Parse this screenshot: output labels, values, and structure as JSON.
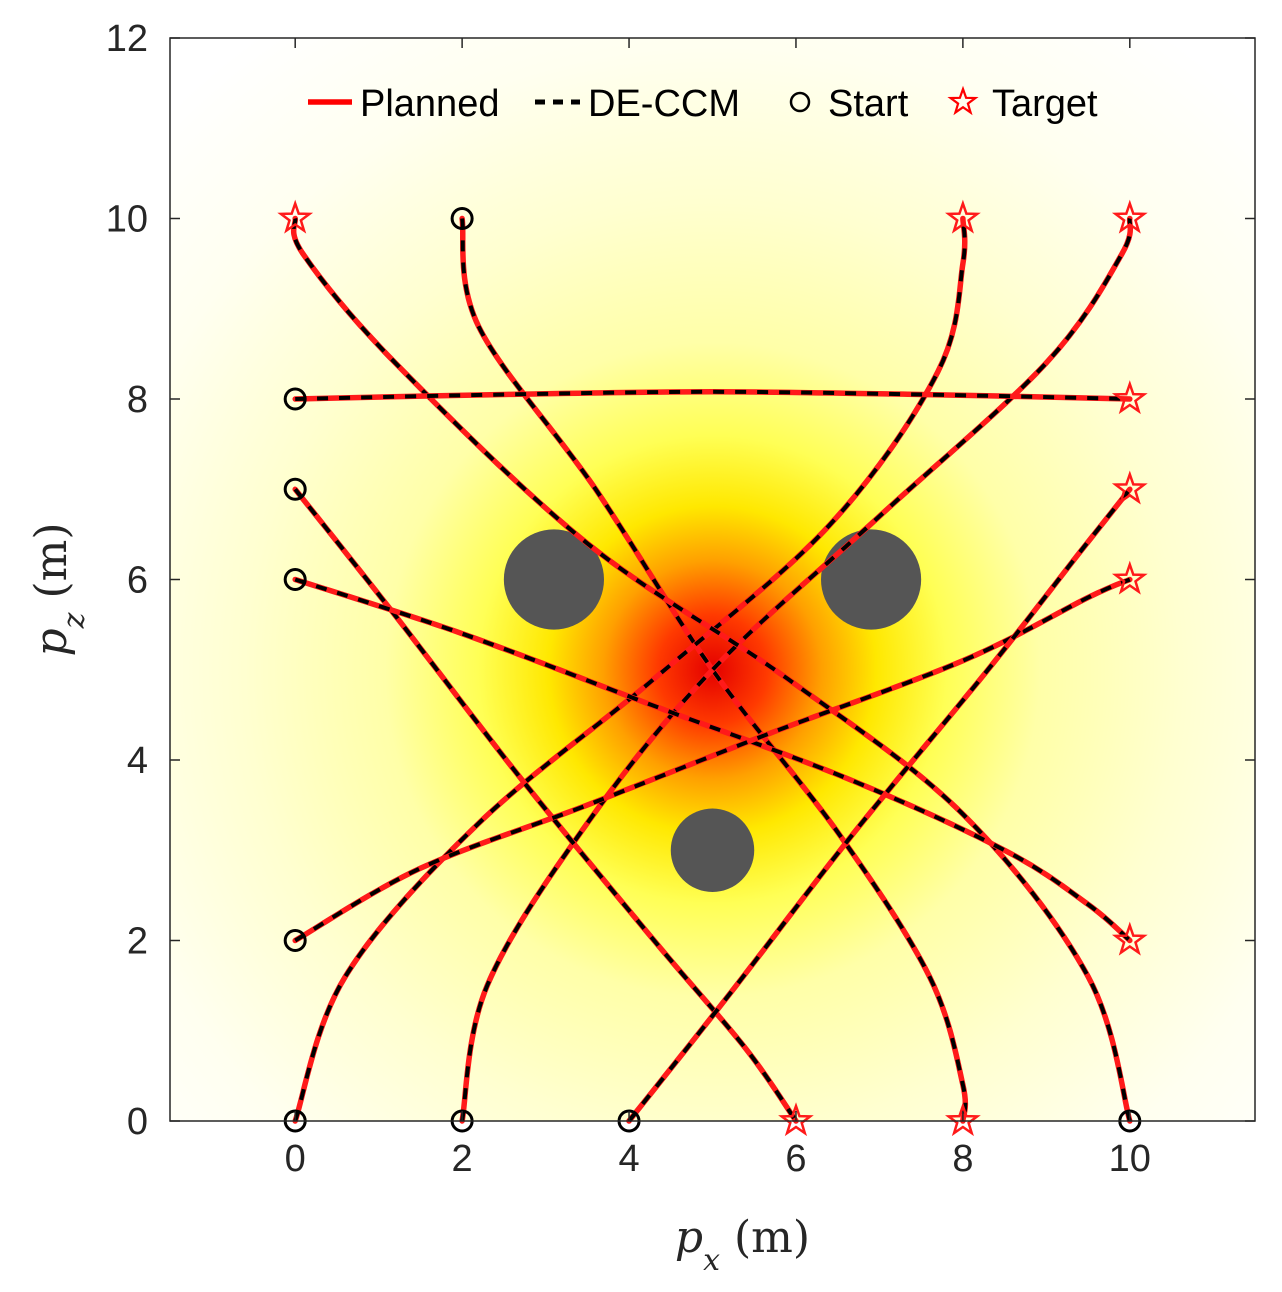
{
  "chart_data": {
    "type": "line",
    "title": "",
    "xlabel": {
      "sym": "p",
      "sub": "x",
      "unit": "(m)"
    },
    "ylabel": {
      "sym": "p",
      "sub": "z",
      "unit": "(m)"
    },
    "xlim": [
      -1.5,
      11.5
    ],
    "ylim": [
      0,
      12
    ],
    "xticks": [
      0,
      2,
      4,
      6,
      8,
      10
    ],
    "yticks": [
      0,
      2,
      4,
      6,
      8,
      10,
      12
    ],
    "grid": false,
    "legend": {
      "position": "top",
      "entries": [
        {
          "label": "Planned",
          "style": "solid",
          "color": "#ff0000"
        },
        {
          "label": "DE-CCM",
          "style": "dashed",
          "color": "#000000"
        },
        {
          "label": "Start",
          "marker": "circle",
          "color": "#000000"
        },
        {
          "label": "Target",
          "marker": "star",
          "color": "#ff0000"
        }
      ]
    },
    "field": {
      "peak": [
        5,
        5
      ],
      "colormap": "hot"
    },
    "obstacles": [
      {
        "x": 3.1,
        "y": 6.0,
        "r": 0.6,
        "color": "#555555"
      },
      {
        "x": 6.9,
        "y": 6.0,
        "r": 0.6,
        "color": "#555555"
      },
      {
        "x": 5.0,
        "y": 3.0,
        "r": 0.5,
        "color": "#555555"
      }
    ],
    "trajectories": [
      {
        "start": [
          2,
          10
        ],
        "target": [
          8,
          0
        ],
        "via": [
          [
            2.2,
            8.8
          ],
          [
            3.6,
            7.0
          ],
          [
            5.0,
            5.0
          ],
          [
            6.5,
            3.2
          ],
          [
            7.6,
            1.6
          ],
          [
            8,
            0.4
          ]
        ]
      },
      {
        "start": [
          0,
          0
        ],
        "target": [
          8,
          10
        ],
        "via": [
          [
            0.6,
            1.6
          ],
          [
            2.2,
            3.3
          ],
          [
            4.3,
            4.9
          ],
          [
            6.4,
            6.6
          ],
          [
            7.7,
            8.3
          ],
          [
            8,
            9.5
          ]
        ]
      },
      {
        "start": [
          2,
          0
        ],
        "target": [
          10,
          10
        ],
        "via": [
          [
            2.3,
            1.5
          ],
          [
            3.5,
            3.3
          ],
          [
            5.0,
            5.0
          ],
          [
            7.0,
            6.7
          ],
          [
            9.0,
            8.4
          ],
          [
            9.9,
            9.6
          ]
        ]
      },
      {
        "start": [
          10,
          0
        ],
        "target": [
          0,
          10
        ],
        "via": [
          [
            9.5,
            1.6
          ],
          [
            8.0,
            3.4
          ],
          [
            5.9,
            4.9
          ],
          [
            3.5,
            6.4
          ],
          [
            1.2,
            8.4
          ],
          [
            0.1,
            9.6
          ]
        ]
      },
      {
        "start": [
          0,
          8
        ],
        "target": [
          10,
          8
        ],
        "via": [
          [
            2.5,
            8.05
          ],
          [
            5.0,
            8.08
          ],
          [
            7.5,
            8.05
          ]
        ]
      },
      {
        "start": [
          0,
          7
        ],
        "target": [
          6,
          0
        ],
        "via": [
          [
            1.2,
            5.6
          ],
          [
            2.7,
            3.8
          ],
          [
            4.3,
            2.0
          ],
          [
            5.4,
            0.8
          ]
        ]
      },
      {
        "start": [
          0,
          6
        ],
        "target": [
          10,
          2
        ],
        "via": [
          [
            2.0,
            5.4
          ],
          [
            4.3,
            4.6
          ],
          [
            6.6,
            3.8
          ],
          [
            8.5,
            3.0
          ],
          [
            9.5,
            2.4
          ]
        ]
      },
      {
        "start": [
          0,
          2
        ],
        "target": [
          10,
          6
        ],
        "via": [
          [
            1.5,
            2.8
          ],
          [
            3.5,
            3.5
          ],
          [
            5.7,
            4.3
          ],
          [
            8.0,
            5.1
          ],
          [
            9.5,
            5.8
          ]
        ]
      },
      {
        "start": [
          4,
          0
        ],
        "target": [
          10,
          7
        ],
        "via": [
          [
            5.2,
            1.4
          ],
          [
            6.7,
            3.2
          ],
          [
            8.3,
            5.0
          ],
          [
            9.4,
            6.3
          ]
        ]
      }
    ],
    "starts": [
      [
        2,
        10
      ],
      [
        0,
        8
      ],
      [
        0,
        7
      ],
      [
        0,
        6
      ],
      [
        0,
        2
      ],
      [
        0,
        0
      ],
      [
        2,
        0
      ],
      [
        4,
        0
      ],
      [
        10,
        0
      ]
    ],
    "targets": [
      [
        0,
        10
      ],
      [
        8,
        10
      ],
      [
        10,
        10
      ],
      [
        10,
        8
      ],
      [
        10,
        7
      ],
      [
        10,
        6
      ],
      [
        10,
        2
      ],
      [
        6,
        0
      ],
      [
        8,
        0
      ]
    ]
  }
}
